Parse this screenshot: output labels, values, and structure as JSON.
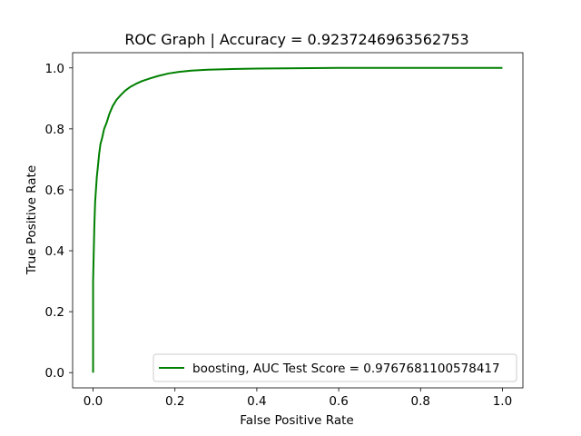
{
  "chart_data": {
    "type": "line",
    "title": "ROC Graph | Accuracy = 0.9237246963562753",
    "xlabel": "False Positive Rate",
    "ylabel": "True Positive Rate",
    "xlim": [
      -0.05,
      1.05
    ],
    "ylim": [
      -0.05,
      1.05
    ],
    "xticks": [
      0.0,
      0.2,
      0.4,
      0.6,
      0.8,
      1.0
    ],
    "xtick_labels": [
      "0.0",
      "0.2",
      "0.4",
      "0.6",
      "0.8",
      "1.0"
    ],
    "yticks": [
      0.0,
      0.2,
      0.4,
      0.6,
      0.8,
      1.0
    ],
    "ytick_labels": [
      "0.0",
      "0.2",
      "0.4",
      "0.6",
      "0.8",
      "1.0"
    ],
    "grid": false,
    "legend_position": "lower-right",
    "series": [
      {
        "name": "boosting, AUC Test Score = 0.9767681100578417",
        "color": "#008000",
        "x": [
          0.0,
          0.0,
          0.002,
          0.003,
          0.004,
          0.005,
          0.007,
          0.009,
          0.012,
          0.015,
          0.018,
          0.022,
          0.027,
          0.033,
          0.04,
          0.048,
          0.057,
          0.067,
          0.078,
          0.09,
          0.105,
          0.12,
          0.14,
          0.16,
          0.185,
          0.21,
          0.24,
          0.28,
          0.33,
          0.4,
          0.5,
          0.6,
          0.7,
          0.8,
          0.9,
          1.0
        ],
        "y": [
          0.0,
          0.3,
          0.42,
          0.48,
          0.52,
          0.56,
          0.6,
          0.64,
          0.68,
          0.72,
          0.75,
          0.77,
          0.8,
          0.82,
          0.85,
          0.875,
          0.895,
          0.91,
          0.925,
          0.937,
          0.948,
          0.957,
          0.966,
          0.974,
          0.982,
          0.987,
          0.991,
          0.994,
          0.996,
          0.998,
          0.999,
          1.0,
          1.0,
          1.0,
          1.0,
          1.0
        ]
      }
    ]
  }
}
